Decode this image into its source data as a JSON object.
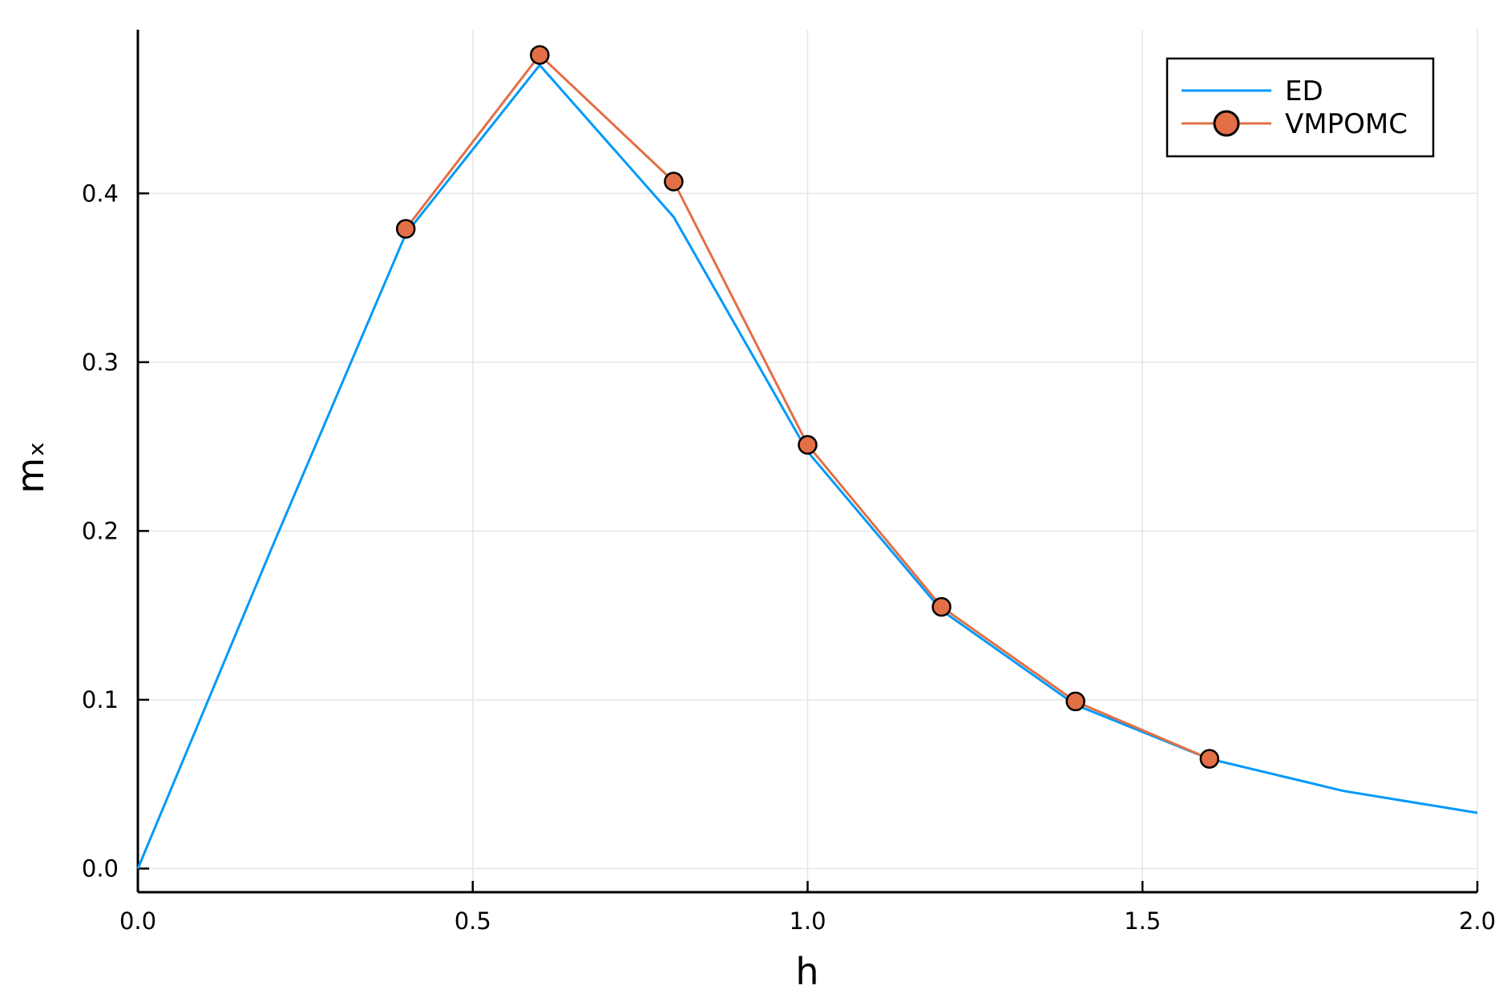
{
  "chart_data": {
    "type": "line",
    "xlabel": "h",
    "ylabel": "mₓ",
    "xlim": [
      0.0,
      2.0
    ],
    "ylim": [
      -0.014,
      0.497
    ],
    "xticks": [
      0.0,
      0.5,
      1.0,
      1.5,
      2.0
    ],
    "xtick_labels": [
      "0.0",
      "0.5",
      "1.0",
      "1.5",
      "2.0"
    ],
    "yticks": [
      0.0,
      0.1,
      0.2,
      0.3,
      0.4
    ],
    "ytick_labels": [
      "0.0",
      "0.1",
      "0.2",
      "0.3",
      "0.4"
    ],
    "grid": true,
    "legend_position": "top-right",
    "series": [
      {
        "name": "ED",
        "color": "#009af9",
        "marker": "none",
        "x": [
          0.0,
          0.2,
          0.4,
          0.6,
          0.8,
          1.0,
          1.2,
          1.4,
          1.6,
          1.8,
          2.0
        ],
        "y": [
          0.0,
          0.19,
          0.376,
          0.476,
          0.386,
          0.247,
          0.153,
          0.097,
          0.065,
          0.046,
          0.033
        ]
      },
      {
        "name": "VMPOMC",
        "color": "#e26f46",
        "marker": "circle",
        "x": [
          0.4,
          0.6,
          0.8,
          1.0,
          1.2,
          1.4,
          1.6
        ],
        "y": [
          0.379,
          0.482,
          0.407,
          0.251,
          0.155,
          0.099,
          0.065
        ]
      }
    ]
  }
}
